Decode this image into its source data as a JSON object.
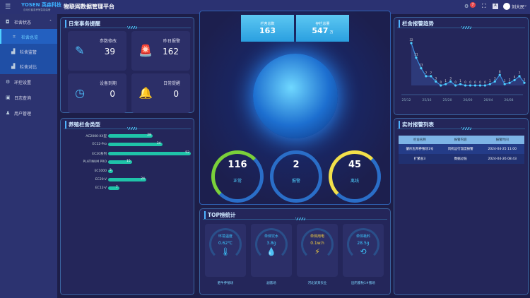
{
  "header": {
    "brand": "YOSEN 英森科技",
    "brand_sub": "自动化畜禽养殖智能装备",
    "title": "物联网数据管理平台",
    "notif_count": "7",
    "user": "刘大民"
  },
  "sidebar": {
    "items": [
      {
        "label": "栏舍状态"
      },
      {
        "label": "栏舍总览"
      },
      {
        "label": "栏舍监管"
      },
      {
        "label": "栏舍对比"
      },
      {
        "label": "环控设置"
      },
      {
        "label": "日志查询"
      },
      {
        "label": "用户管理"
      }
    ]
  },
  "daily": {
    "title": "日常事务提醒",
    "cards": [
      {
        "label": "参数修改",
        "value": "39"
      },
      {
        "label": "昨日报警",
        "value": "162"
      },
      {
        "label": "设备到期",
        "value": "0"
      },
      {
        "label": "日常提醒",
        "value": "0"
      }
    ]
  },
  "types": {
    "title": "养殖栏舍类型",
    "items": [
      {
        "label": "AC2000-XX型",
        "value": 28
      },
      {
        "label": "EC12-Pro",
        "value": 34
      },
      {
        "label": "EC20系列",
        "value": 52
      },
      {
        "label": "PLATINUM PRO",
        "value": 15
      },
      {
        "label": "EC1000",
        "value": 3
      },
      {
        "label": "EC20-V",
        "value": 24
      },
      {
        "label": "EC12-V",
        "value": 7
      }
    ]
  },
  "center": {
    "total_label": "栏舍总数",
    "total": "163",
    "stock_label": "存栏总量",
    "stock": "547",
    "stock_unit": "万",
    "status": [
      {
        "label": "正常",
        "value": "116",
        "color": "#7ad03a"
      },
      {
        "label": "报警",
        "value": "2",
        "color": "#2a6ec8"
      },
      {
        "label": "离线",
        "value": "45",
        "color": "#f2e04a"
      }
    ]
  },
  "top": {
    "title": "TOP榜统计",
    "items": [
      {
        "label": "环境温度",
        "value": "0.62℃",
        "icon": "thermometer-icon",
        "farm": "肥牛养殖场",
        "color": "#3cc8ff"
      },
      {
        "label": "单体饮水",
        "value": "3.8g",
        "icon": "water-drop-icon",
        "farm": "副畜场",
        "color": "#3cc8ff"
      },
      {
        "label": "单体用电",
        "value": "0.1w.h",
        "icon": "lightning-icon",
        "farm": "河北某某农业",
        "color": "#f5d040"
      },
      {
        "label": "单体耗料",
        "value": "28.5g",
        "icon": "share-icon",
        "farm": "国内畜牧1#猪场",
        "color": "#3cc8ff"
      }
    ]
  },
  "trend": {
    "title": "栏舍报警趋势"
  },
  "chart_data": {
    "type": "area",
    "x_ticks": [
      "25/12",
      "25/16",
      "25/20",
      "26/00",
      "26/04",
      "26/08"
    ],
    "values": [
      32,
      21,
      13,
      7,
      7,
      3,
      0,
      1,
      3,
      0,
      1,
      0,
      0,
      0,
      0,
      0,
      1,
      3,
      8,
      1,
      2,
      4,
      7,
      2
    ],
    "grid": false,
    "color": "#4fd0ff"
  },
  "alarms": {
    "title": "实时报警列表",
    "columns": [
      "栏舍名称",
      "报警内容",
      "报警时间"
    ],
    "rows": [
      [
        "肇庆志邦养殖场1号",
        "风机运行温度报警",
        "2024-04-25 11:00"
      ],
      [
        "扩繁舍3",
        "数据过低",
        "2024-04-26 08:43"
      ]
    ]
  }
}
